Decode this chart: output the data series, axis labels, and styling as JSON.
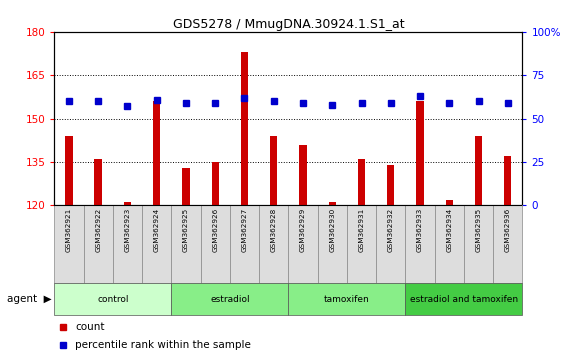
{
  "title": "GDS5278 / MmugDNA.30924.1.S1_at",
  "samples": [
    "GSM362921",
    "GSM362922",
    "GSM362923",
    "GSM362924",
    "GSM362925",
    "GSM362926",
    "GSM362927",
    "GSM362928",
    "GSM362929",
    "GSM362930",
    "GSM362931",
    "GSM362932",
    "GSM362933",
    "GSM362934",
    "GSM362935",
    "GSM362936"
  ],
  "counts": [
    144,
    136,
    121,
    156,
    133,
    135,
    173,
    144,
    141,
    121,
    136,
    134,
    156,
    122,
    144,
    137
  ],
  "percentile_ranks": [
    60,
    60,
    57,
    61,
    59,
    59,
    62,
    60,
    59,
    58,
    59,
    59,
    63,
    59,
    60,
    59
  ],
  "groups": [
    {
      "label": "control",
      "start": 0,
      "end": 3,
      "color": "#ccffcc"
    },
    {
      "label": "estradiol",
      "start": 4,
      "end": 7,
      "color": "#88ee88"
    },
    {
      "label": "tamoxifen",
      "start": 8,
      "end": 11,
      "color": "#88ee88"
    },
    {
      "label": "estradiol and tamoxifen",
      "start": 12,
      "end": 15,
      "color": "#44cc44"
    }
  ],
  "ylim_left": [
    120,
    180
  ],
  "ylim_right": [
    0,
    100
  ],
  "yticks_left": [
    120,
    135,
    150,
    165,
    180
  ],
  "yticks_right": [
    0,
    25,
    50,
    75,
    100
  ],
  "bar_color": "#cc0000",
  "dot_color": "#0000cc",
  "bar_width": 0.25
}
